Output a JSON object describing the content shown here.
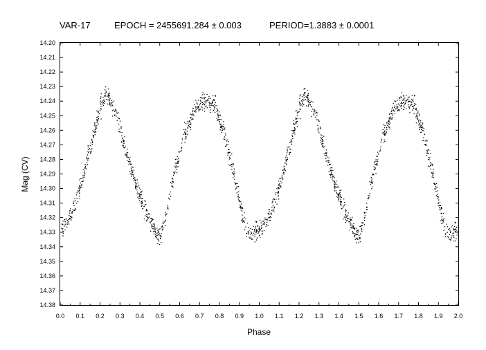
{
  "chart_data": {
    "type": "scatter",
    "title_parts": [
      "VAR-17",
      "EPOCH = 2455691.284 ± 0.003",
      "PERIOD=1.3883 ± 0.0001"
    ],
    "xlabel": "Phase",
    "ylabel": "Mag (CV)",
    "xlim": [
      0.0,
      2.0
    ],
    "ylim": [
      14.38,
      14.2
    ],
    "y_inverted": true,
    "x_ticks": [
      "0.0",
      "0.1",
      "0.2",
      "0.3",
      "0.4",
      "0.5",
      "0.6",
      "0.7",
      "0.8",
      "0.9",
      "1.0",
      "1.1",
      "1.2",
      "1.3",
      "1.4",
      "1.5",
      "1.6",
      "1.7",
      "1.8",
      "1.9",
      "2.0"
    ],
    "y_ticks": [
      "14.20",
      "14.21",
      "14.22",
      "14.23",
      "14.24",
      "14.25",
      "14.26",
      "14.27",
      "14.28",
      "14.29",
      "14.30",
      "14.31",
      "14.32",
      "14.33",
      "14.34",
      "14.35",
      "14.36",
      "14.37",
      "14.38"
    ],
    "grid": false,
    "marker_color": "#000000",
    "light_curve_shape": {
      "description_points_phase_mag": [
        [
          0.0,
          14.328
        ],
        [
          0.05,
          14.318
        ],
        [
          0.1,
          14.298
        ],
        [
          0.15,
          14.272
        ],
        [
          0.2,
          14.243
        ],
        [
          0.23,
          14.236
        ],
        [
          0.27,
          14.244
        ],
        [
          0.32,
          14.27
        ],
        [
          0.37,
          14.294
        ],
        [
          0.42,
          14.313
        ],
        [
          0.47,
          14.327
        ],
        [
          0.5,
          14.333
        ],
        [
          0.53,
          14.318
        ],
        [
          0.57,
          14.29
        ],
        [
          0.62,
          14.265
        ],
        [
          0.67,
          14.246
        ],
        [
          0.72,
          14.24
        ],
        [
          0.78,
          14.243
        ],
        [
          0.82,
          14.262
        ],
        [
          0.87,
          14.29
        ],
        [
          0.92,
          14.322
        ],
        [
          0.95,
          14.332
        ],
        [
          1.0,
          14.328
        ]
      ],
      "scatter_spread_mag": 0.006,
      "points_per_cycle": 900
    }
  }
}
